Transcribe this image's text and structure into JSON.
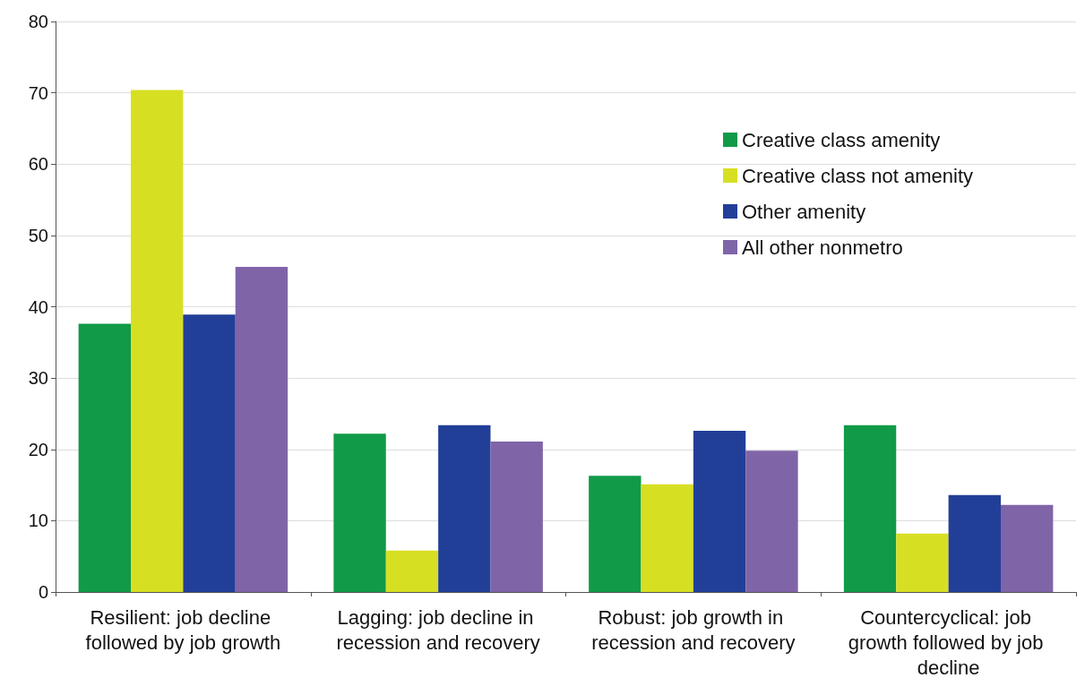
{
  "chart_data": {
    "type": "bar",
    "categories": [
      "Resilient: job decline followed by job growth",
      "Lagging: job decline in recession and recovery",
      "Robust: job growth in recession and recovery",
      "Countercyclical: job growth followed by job decline"
    ],
    "series": [
      {
        "name": "Creative class amenity",
        "color": "#119a48",
        "values": [
          37.6,
          22.2,
          16.3,
          23.4
        ]
      },
      {
        "name": "Creative class not amenity",
        "color": "#d7df23",
        "values": [
          70.4,
          5.8,
          15.1,
          8.2
        ]
      },
      {
        "name": "Other amenity",
        "color": "#223f98",
        "values": [
          38.9,
          23.4,
          22.6,
          13.6
        ]
      },
      {
        "name": "All other nonmetro",
        "color": "#8064a8",
        "values": [
          45.6,
          21.1,
          19.8,
          12.2
        ]
      }
    ],
    "ylim": [
      0,
      80
    ],
    "yticks": [
      0,
      10,
      20,
      30,
      40,
      50,
      60,
      70,
      80
    ],
    "grid": "y",
    "legend": "top right"
  }
}
